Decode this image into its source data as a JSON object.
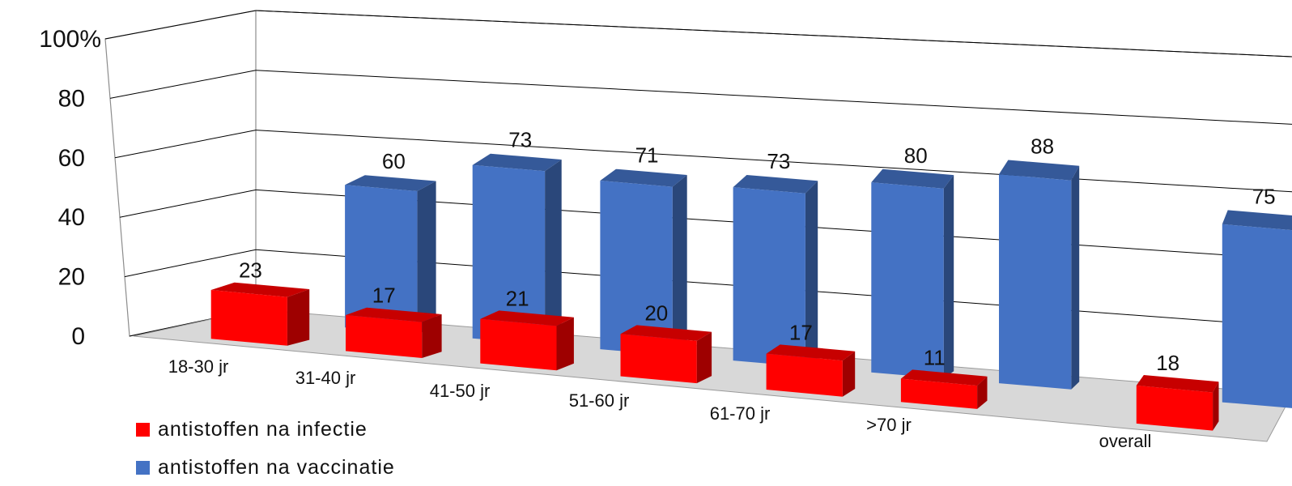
{
  "chart_data": {
    "type": "bar",
    "categories": [
      "18-30 jr",
      "31-40 jr",
      "41-50 jr",
      "51-60 jr",
      "61-70 jr",
      ">70 jr",
      "overall"
    ],
    "series": [
      {
        "name": "antistoffen na infectie",
        "values": [
          23,
          17,
          21,
          20,
          17,
          11,
          18
        ],
        "color": "#ff0000"
      },
      {
        "name": "antistoffen na vaccinatie",
        "values": [
          60,
          73,
          71,
          73,
          80,
          88,
          75
        ],
        "color": "#4472c4"
      }
    ],
    "ylim": [
      0,
      100
    ],
    "yticks": [
      "0",
      "20",
      "40",
      "60",
      "80",
      "100%"
    ],
    "grid": true,
    "legend_position": "bottom-left",
    "three_d": true
  }
}
